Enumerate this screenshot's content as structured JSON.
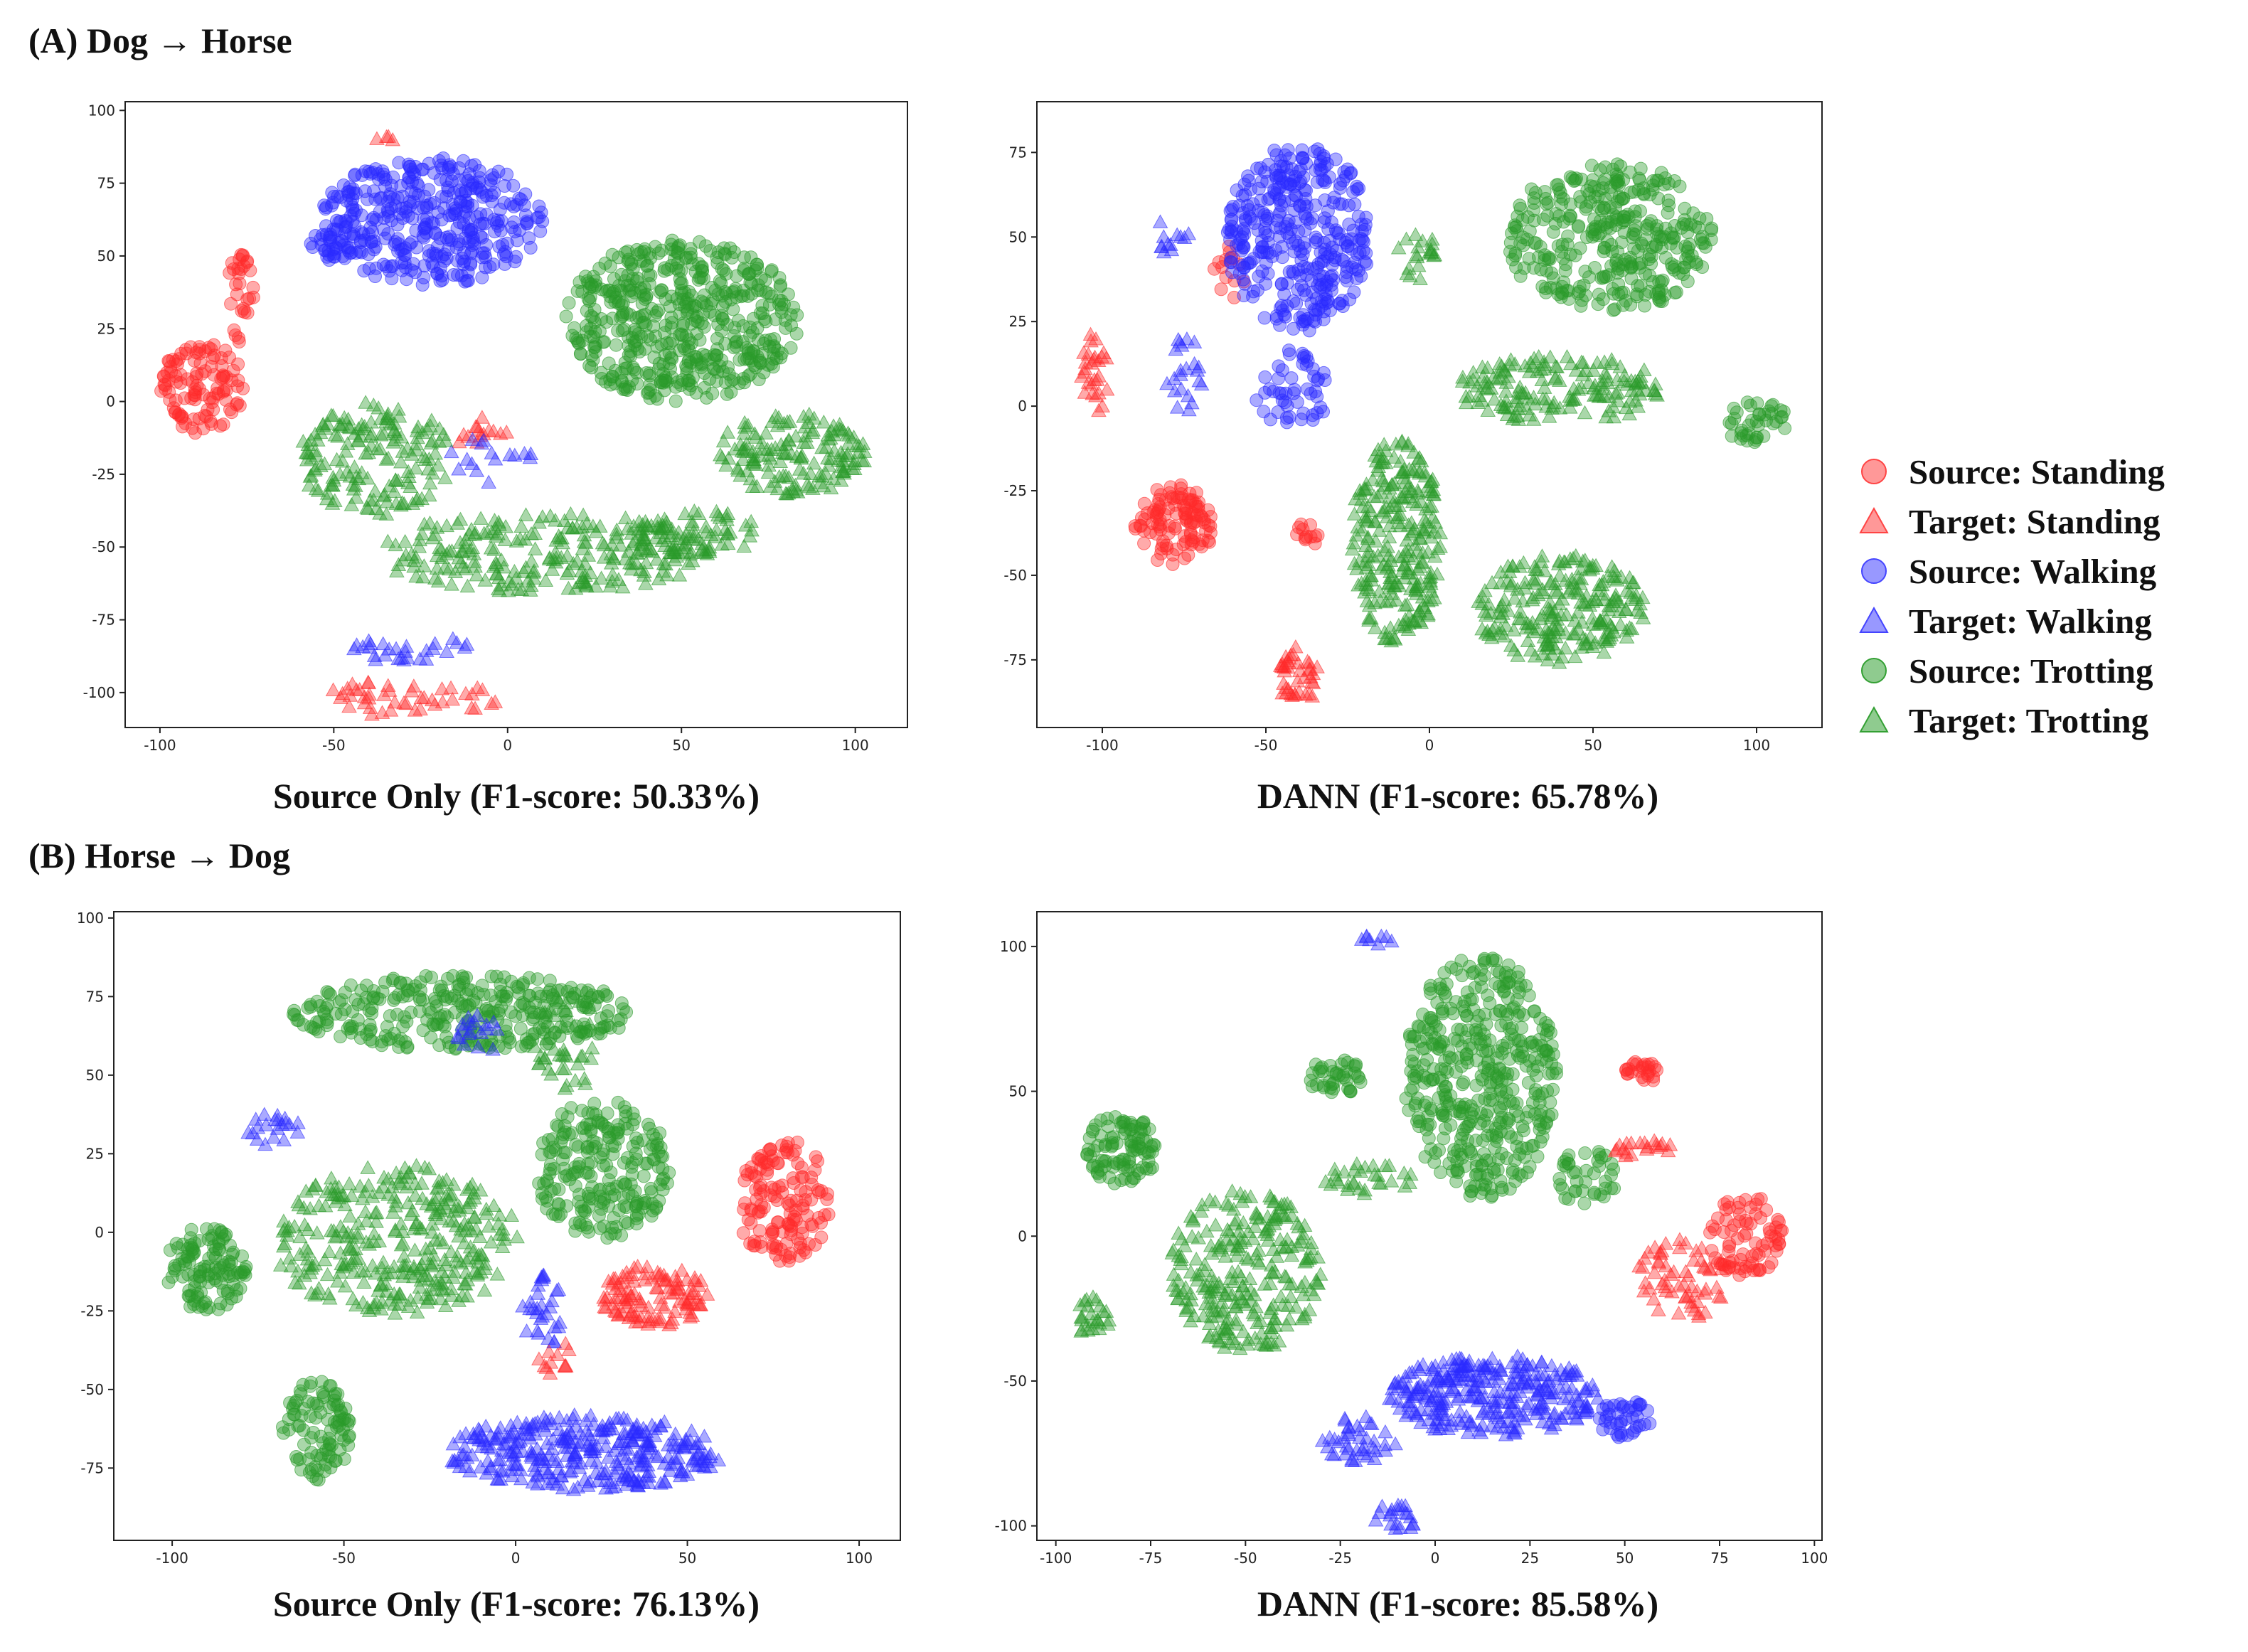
{
  "section_a": {
    "title": "(A) Dog → Horse"
  },
  "section_b": {
    "title": "(B) Horse → Dog"
  },
  "legend": [
    {
      "label": "Source: Standing",
      "marker": "circle",
      "color": "#ff4444"
    },
    {
      "label": "Target: Standing",
      "marker": "triangle",
      "color": "#ff4444"
    },
    {
      "label": "Source: Walking",
      "marker": "circle",
      "color": "#4444ff"
    },
    {
      "label": "Target: Walking",
      "marker": "triangle",
      "color": "#4444ff"
    },
    {
      "label": "Source: Trotting",
      "marker": "circle",
      "color": "#33a033"
    },
    {
      "label": "Target: Trotting",
      "marker": "triangle",
      "color": "#33a033"
    }
  ],
  "colors": {
    "standing": "#ff2a2a",
    "walking": "#2a2aff",
    "trotting": "#2a9a2a"
  },
  "chart_data": [
    {
      "id": "a1",
      "type": "scatter",
      "title": "Source Only (F1-score: 50.33%)",
      "xlim": [
        -110,
        115
      ],
      "ylim": [
        -112,
        103
      ],
      "xticks": [
        -100,
        -50,
        0,
        50,
        100
      ],
      "yticks": [
        -100,
        -75,
        -50,
        -25,
        0,
        25,
        50,
        75,
        100
      ],
      "clusters": [
        {
          "cls": "standing",
          "marker": "circle",
          "cx": -88,
          "cy": 5,
          "rx": 12,
          "ry": 16,
          "n": 110
        },
        {
          "cls": "standing",
          "marker": "circle",
          "cx": -77,
          "cy": 35,
          "rx": 4,
          "ry": 16,
          "n": 30
        },
        {
          "cls": "standing",
          "marker": "triangle",
          "cx": -37,
          "cy": 90,
          "rx": 4,
          "ry": 2,
          "n": 4
        },
        {
          "cls": "standing",
          "marker": "triangle",
          "cx": -8,
          "cy": -10,
          "rx": 8,
          "ry": 6,
          "n": 14
        },
        {
          "cls": "standing",
          "marker": "triangle",
          "cx": -30,
          "cy": -102,
          "rx": 28,
          "ry": 6,
          "n": 45
        },
        {
          "cls": "walking",
          "marker": "circle",
          "cx": -22,
          "cy": 62,
          "rx": 32,
          "ry": 22,
          "n": 380
        },
        {
          "cls": "walking",
          "marker": "circle",
          "cx": -48,
          "cy": 54,
          "rx": 10,
          "ry": 6,
          "n": 35
        },
        {
          "cls": "walking",
          "marker": "triangle",
          "cx": -28,
          "cy": -85,
          "rx": 18,
          "ry": 5,
          "n": 28
        },
        {
          "cls": "walking",
          "marker": "triangle",
          "cx": -5,
          "cy": -20,
          "rx": 15,
          "ry": 8,
          "n": 16
        },
        {
          "cls": "trotting",
          "marker": "circle",
          "cx": 50,
          "cy": 28,
          "rx": 34,
          "ry": 28,
          "n": 520
        },
        {
          "cls": "trotting",
          "marker": "triangle",
          "cx": -38,
          "cy": -20,
          "rx": 22,
          "ry": 20,
          "n": 160
        },
        {
          "cls": "trotting",
          "marker": "triangle",
          "cx": 10,
          "cy": -52,
          "rx": 48,
          "ry": 14,
          "n": 240
        },
        {
          "cls": "trotting",
          "marker": "triangle",
          "cx": 82,
          "cy": -18,
          "rx": 22,
          "ry": 14,
          "n": 150
        },
        {
          "cls": "trotting",
          "marker": "triangle",
          "cx": 52,
          "cy": -45,
          "rx": 22,
          "ry": 8,
          "n": 70
        }
      ]
    },
    {
      "id": "a2",
      "type": "scatter",
      "title": "DANN (F1-score: 65.78%)",
      "xlim": [
        -120,
        120
      ],
      "ylim": [
        -95,
        90
      ],
      "xticks": [
        -100,
        -50,
        0,
        50,
        100
      ],
      "yticks": [
        -75,
        -50,
        -25,
        0,
        25,
        50,
        75
      ],
      "clusters": [
        {
          "cls": "standing",
          "marker": "triangle",
          "cx": -103,
          "cy": 8,
          "rx": 5,
          "ry": 14,
          "n": 28
        },
        {
          "cls": "standing",
          "marker": "circle",
          "cx": -78,
          "cy": -35,
          "rx": 12,
          "ry": 12,
          "n": 110
        },
        {
          "cls": "standing",
          "marker": "triangle",
          "cx": -40,
          "cy": -80,
          "rx": 7,
          "ry": 9,
          "n": 40
        },
        {
          "cls": "standing",
          "marker": "circle",
          "cx": -37,
          "cy": -38,
          "rx": 4,
          "ry": 4,
          "n": 12
        },
        {
          "cls": "standing",
          "marker": "circle",
          "cx": -62,
          "cy": 40,
          "rx": 6,
          "ry": 10,
          "n": 14
        },
        {
          "cls": "walking",
          "marker": "circle",
          "cx": -40,
          "cy": 50,
          "rx": 22,
          "ry": 28,
          "n": 360
        },
        {
          "cls": "walking",
          "marker": "circle",
          "cx": -42,
          "cy": 5,
          "rx": 12,
          "ry": 12,
          "n": 50
        },
        {
          "cls": "walking",
          "marker": "triangle",
          "cx": -75,
          "cy": 10,
          "rx": 6,
          "ry": 12,
          "n": 22
        },
        {
          "cls": "walking",
          "marker": "triangle",
          "cx": -80,
          "cy": 50,
          "rx": 7,
          "ry": 6,
          "n": 12
        },
        {
          "cls": "trotting",
          "marker": "circle",
          "cx": 55,
          "cy": 50,
          "rx": 32,
          "ry": 22,
          "n": 360
        },
        {
          "cls": "trotting",
          "marker": "circle",
          "cx": 100,
          "cy": -5,
          "rx": 10,
          "ry": 7,
          "n": 40
        },
        {
          "cls": "trotting",
          "marker": "triangle",
          "cx": 40,
          "cy": 5,
          "rx": 32,
          "ry": 10,
          "n": 160
        },
        {
          "cls": "trotting",
          "marker": "triangle",
          "cx": -10,
          "cy": -40,
          "rx": 14,
          "ry": 30,
          "n": 260
        },
        {
          "cls": "trotting",
          "marker": "triangle",
          "cx": 40,
          "cy": -60,
          "rx": 26,
          "ry": 16,
          "n": 230
        },
        {
          "cls": "trotting",
          "marker": "triangle",
          "cx": -4,
          "cy": 45,
          "rx": 6,
          "ry": 8,
          "n": 20
        }
      ]
    },
    {
      "id": "b1",
      "type": "scatter",
      "title": "Source Only (F1-score: 76.13%)",
      "xlim": [
        -117,
        112
      ],
      "ylim": [
        -98,
        102
      ],
      "xticks": [
        -100,
        -50,
        0,
        50,
        100
      ],
      "yticks": [
        -75,
        -50,
        -25,
        0,
        25,
        50,
        75,
        100
      ],
      "clusters": [
        {
          "cls": "trotting",
          "marker": "circle",
          "cx": -90,
          "cy": -12,
          "rx": 12,
          "ry": 14,
          "n": 120
        },
        {
          "cls": "trotting",
          "marker": "circle",
          "cx": -58,
          "cy": -63,
          "rx": 10,
          "ry": 16,
          "n": 100
        },
        {
          "cls": "trotting",
          "marker": "circle",
          "cx": -15,
          "cy": 70,
          "rx": 50,
          "ry": 12,
          "n": 330
        },
        {
          "cls": "trotting",
          "marker": "circle",
          "cx": 25,
          "cy": 20,
          "rx": 20,
          "ry": 22,
          "n": 230
        },
        {
          "cls": "trotting",
          "marker": "triangle",
          "cx": -35,
          "cy": -2,
          "rx": 36,
          "ry": 24,
          "n": 330
        },
        {
          "cls": "trotting",
          "marker": "triangle",
          "cx": 15,
          "cy": 60,
          "rx": 10,
          "ry": 16,
          "n": 40
        },
        {
          "cls": "walking",
          "marker": "triangle",
          "cx": 20,
          "cy": -70,
          "rx": 40,
          "ry": 12,
          "n": 330
        },
        {
          "cls": "walking",
          "marker": "triangle",
          "cx": 8,
          "cy": -25,
          "rx": 6,
          "ry": 12,
          "n": 30
        },
        {
          "cls": "walking",
          "marker": "triangle",
          "cx": -70,
          "cy": 32,
          "rx": 8,
          "ry": 6,
          "n": 20
        },
        {
          "cls": "walking",
          "marker": "triangle",
          "cx": -10,
          "cy": 63,
          "rx": 8,
          "ry": 6,
          "n": 18
        },
        {
          "cls": "standing",
          "marker": "circle",
          "cx": 78,
          "cy": 10,
          "rx": 14,
          "ry": 20,
          "n": 140
        },
        {
          "cls": "standing",
          "marker": "triangle",
          "cx": 40,
          "cy": -20,
          "rx": 16,
          "ry": 10,
          "n": 110
        },
        {
          "cls": "standing",
          "marker": "triangle",
          "cx": 12,
          "cy": -40,
          "rx": 6,
          "ry": 6,
          "n": 12
        }
      ]
    },
    {
      "id": "b2",
      "type": "scatter",
      "title": "DANN (F1-score: 85.58%)",
      "xlim": [
        -105,
        102
      ],
      "ylim": [
        -105,
        112
      ],
      "xticks": [
        -100,
        -75,
        -50,
        -25,
        0,
        25,
        50,
        75,
        100
      ],
      "yticks": [
        -100,
        -50,
        0,
        50,
        100
      ],
      "clusters": [
        {
          "cls": "trotting",
          "marker": "circle",
          "cx": -83,
          "cy": 30,
          "rx": 10,
          "ry": 12,
          "n": 100
        },
        {
          "cls": "trotting",
          "marker": "circle",
          "cx": -26,
          "cy": 55,
          "rx": 8,
          "ry": 6,
          "n": 40
        },
        {
          "cls": "trotting",
          "marker": "circle",
          "cx": 12,
          "cy": 55,
          "rx": 20,
          "ry": 42,
          "n": 450
        },
        {
          "cls": "trotting",
          "marker": "circle",
          "cx": 40,
          "cy": 20,
          "rx": 8,
          "ry": 10,
          "n": 40
        },
        {
          "cls": "trotting",
          "marker": "triangle",
          "cx": -50,
          "cy": -12,
          "rx": 20,
          "ry": 28,
          "n": 260
        },
        {
          "cls": "trotting",
          "marker": "triangle",
          "cx": -90,
          "cy": -28,
          "rx": 5,
          "ry": 7,
          "n": 25
        },
        {
          "cls": "trotting",
          "marker": "triangle",
          "cx": -18,
          "cy": 20,
          "rx": 12,
          "ry": 6,
          "n": 30
        },
        {
          "cls": "walking",
          "marker": "triangle",
          "cx": 15,
          "cy": -55,
          "rx": 28,
          "ry": 14,
          "n": 300
        },
        {
          "cls": "walking",
          "marker": "triangle",
          "cx": -20,
          "cy": -70,
          "rx": 10,
          "ry": 8,
          "n": 40
        },
        {
          "cls": "walking",
          "marker": "triangle",
          "cx": -10,
          "cy": -97,
          "rx": 6,
          "ry": 5,
          "n": 20
        },
        {
          "cls": "walking",
          "marker": "triangle",
          "cx": -15,
          "cy": 102,
          "rx": 5,
          "ry": 2,
          "n": 8
        },
        {
          "cls": "walking",
          "marker": "circle",
          "cx": 50,
          "cy": -63,
          "rx": 7,
          "ry": 7,
          "n": 40
        },
        {
          "cls": "standing",
          "marker": "circle",
          "cx": 82,
          "cy": 0,
          "rx": 10,
          "ry": 14,
          "n": 80
        },
        {
          "cls": "standing",
          "marker": "circle",
          "cx": 55,
          "cy": 57,
          "rx": 5,
          "ry": 4,
          "n": 25
        },
        {
          "cls": "standing",
          "marker": "triangle",
          "cx": 55,
          "cy": 30,
          "rx": 10,
          "ry": 3,
          "n": 20
        },
        {
          "cls": "standing",
          "marker": "triangle",
          "cx": 65,
          "cy": -15,
          "rx": 12,
          "ry": 14,
          "n": 60
        }
      ]
    }
  ]
}
